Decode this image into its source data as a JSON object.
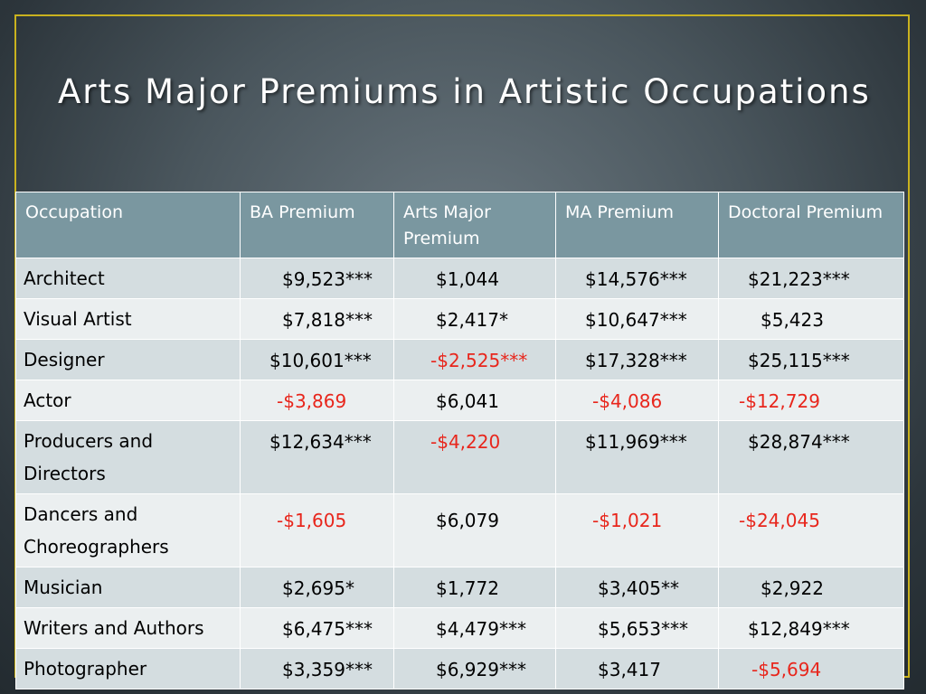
{
  "slide": {
    "title": "Arts Major Premiums in Artistic Occupations",
    "colors": {
      "border": "#c9b21f",
      "header": "#7a97a0",
      "negative": "#e8261c"
    }
  },
  "table": {
    "headers": [
      "Occupation",
      "BA Premium",
      "Arts Major Premium",
      "MA Premium",
      "Doctoral Premium"
    ],
    "rows": [
      {
        "occupation": "Architect",
        "ba": "$9,523***",
        "arts": "$1,044",
        "ma": "$14,576***",
        "doc": "$21,223***"
      },
      {
        "occupation": "Visual Artist",
        "ba": "$7,818***",
        "arts": "$2,417*",
        "ma": "$10,647***",
        "doc": "$5,423"
      },
      {
        "occupation": "Designer",
        "ba": "$10,601***",
        "arts": "-$2,525***",
        "ma": "$17,328***",
        "doc": "$25,115***"
      },
      {
        "occupation": "Actor",
        "ba": "-$3,869",
        "arts": "$6,041",
        "ma": "-$4,086",
        "doc": "-$12,729"
      },
      {
        "occupation": "Producers and Directors",
        "ba": "$12,634***",
        "arts": "-$4,220",
        "ma": "$11,969***",
        "doc": "$28,874***"
      },
      {
        "occupation": "Dancers and Choreographers",
        "ba": "-$1,605",
        "arts": "$6,079",
        "ma": "-$1,021",
        "doc": "-$24,045"
      },
      {
        "occupation": "Musician",
        "ba": "$2,695*",
        "arts": "$1,772",
        "ma": "$3,405**",
        "doc": "$2,922"
      },
      {
        "occupation": "Writers and Authors",
        "ba": "$6,475***",
        "arts": "$4,479***",
        "ma": "$5,653***",
        "doc": "$12,849***"
      },
      {
        "occupation": "Photographer",
        "ba": "$3,359***",
        "arts": "$6,929***",
        "ma": "$3,417",
        "doc": "-$5,694"
      }
    ]
  }
}
